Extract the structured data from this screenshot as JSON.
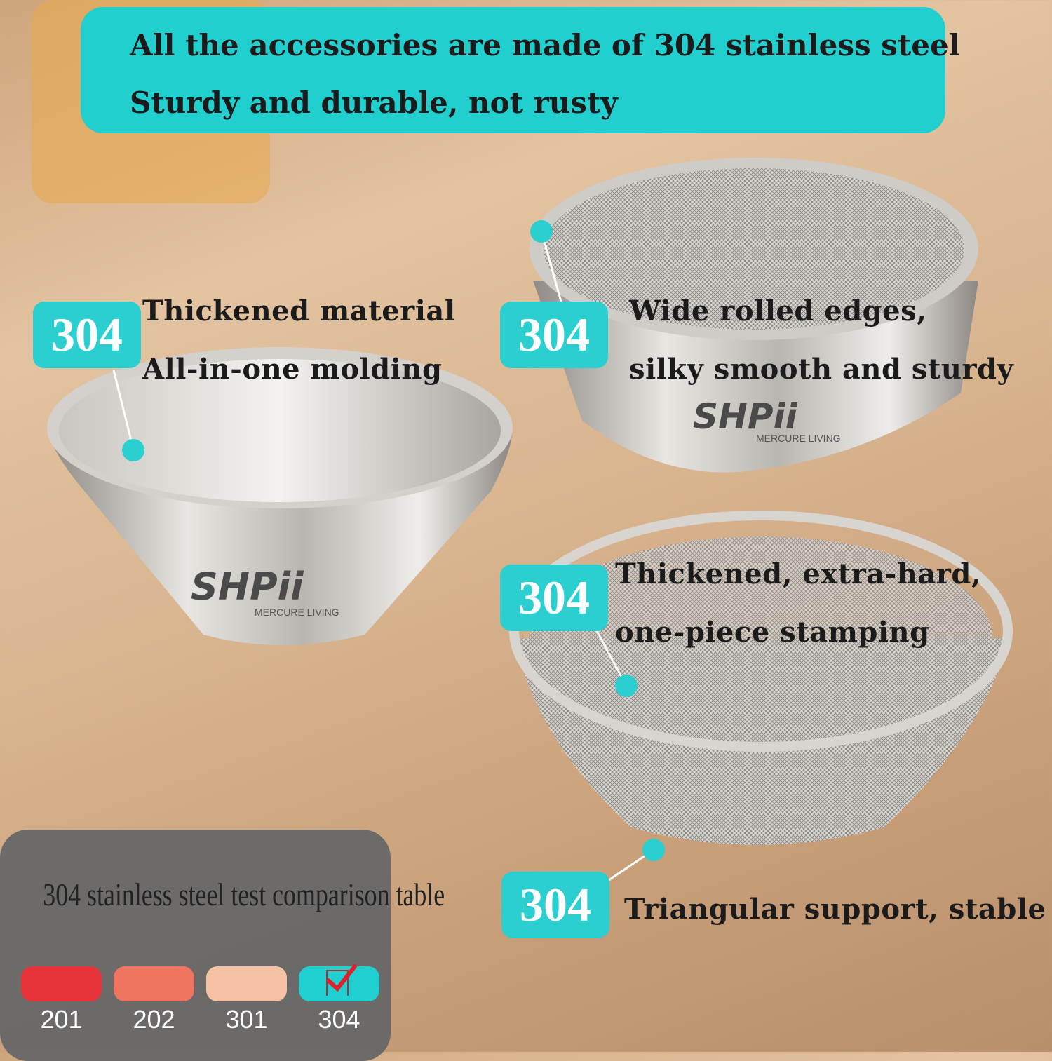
{
  "banner": {
    "line1": "All the accessories are made of 304 stainless steel",
    "line2": "Sturdy and durable, not rusty",
    "color": "#21cfce"
  },
  "callouts": [
    {
      "badge": "304",
      "line1": "Thickened material",
      "line2": "All-in-one molding"
    },
    {
      "badge": "304",
      "line1": "Wide rolled edges,",
      "line2": "silky smooth and sturdy"
    },
    {
      "badge": "304",
      "line1": "Thickened, extra-hard,",
      "line2": "one-piece stamping"
    },
    {
      "badge": "304",
      "line1": "Triangular support, stable"
    }
  ],
  "logo": {
    "brand": "SHPii",
    "tagline": "MERCURE LIVING"
  },
  "comparison_table": {
    "title": "304 stainless steel test comparison table",
    "grades": [
      {
        "label": "201",
        "color": "#e8323a",
        "checked": false
      },
      {
        "label": "202",
        "color": "#f07560",
        "checked": false
      },
      {
        "label": "301",
        "color": "#f5c3a3",
        "checked": false
      },
      {
        "label": "304",
        "color": "#20cfcf",
        "checked": true
      }
    ],
    "check_icon": "checkbox-checked-icon"
  }
}
